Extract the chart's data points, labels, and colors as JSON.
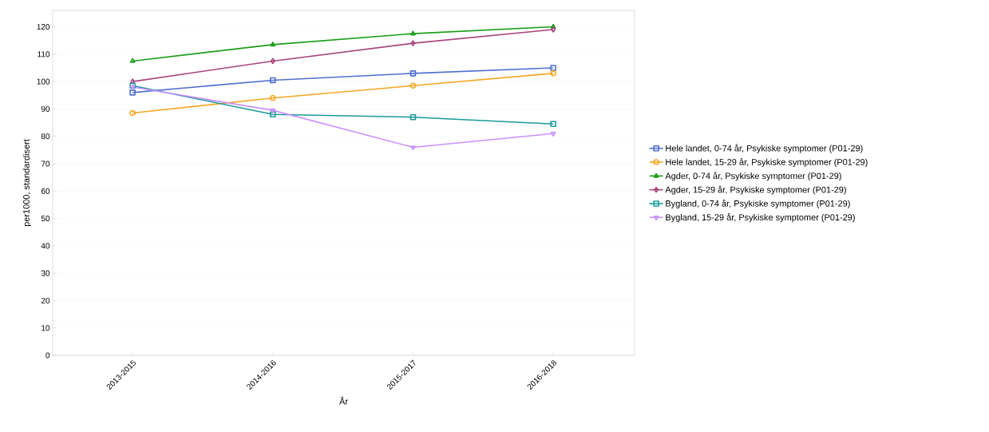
{
  "chart_data": {
    "type": "line",
    "xlabel": "År",
    "ylabel": "per1000, standardisert",
    "categories": [
      "2013-2015",
      "2014-2016",
      "2015-2017",
      "2016-2018"
    ],
    "series": [
      {
        "name": "Hele landet, 0-74 år, Psykiske symptomer (P01-29)",
        "color": "#4f6fcf",
        "marker": "square",
        "values": [
          96,
          100.5,
          103,
          105
        ]
      },
      {
        "name": "Hele landet, 15-29 år, Psykiske symptomer (P01-29)",
        "color": "#f5a623",
        "marker": "circle",
        "values": [
          88.5,
          94,
          98.5,
          103
        ]
      },
      {
        "name": "Agder, 0-74 år, Psykiske symptomer (P01-29)",
        "color": "#1a9e1a",
        "marker": "triangle",
        "values": [
          107.5,
          113.5,
          117.5,
          120
        ]
      },
      {
        "name": "Agder, 15-29 år, Psykiske symptomer (P01-29)",
        "color": "#a8457d",
        "marker": "diamond",
        "values": [
          100,
          107.5,
          114,
          119
        ]
      },
      {
        "name": "Bygland, 0-74 år, Psykiske symptomer (P01-29)",
        "color": "#1a9a9a",
        "marker": "square",
        "values": [
          98.5,
          88,
          87,
          84.5
        ]
      },
      {
        "name": "Bygland, 15-29 år, Psykiske symptomer (P01-29)",
        "color": "#c990ff",
        "marker": "triangle",
        "values": [
          98,
          89.5,
          76,
          81
        ]
      }
    ],
    "ylim": [
      0,
      126
    ],
    "yticks": [
      0,
      10,
      20,
      30,
      40,
      50,
      60,
      70,
      80,
      90,
      100,
      110,
      120
    ],
    "grid": "y",
    "legend": "right",
    "line_style": "solid"
  }
}
